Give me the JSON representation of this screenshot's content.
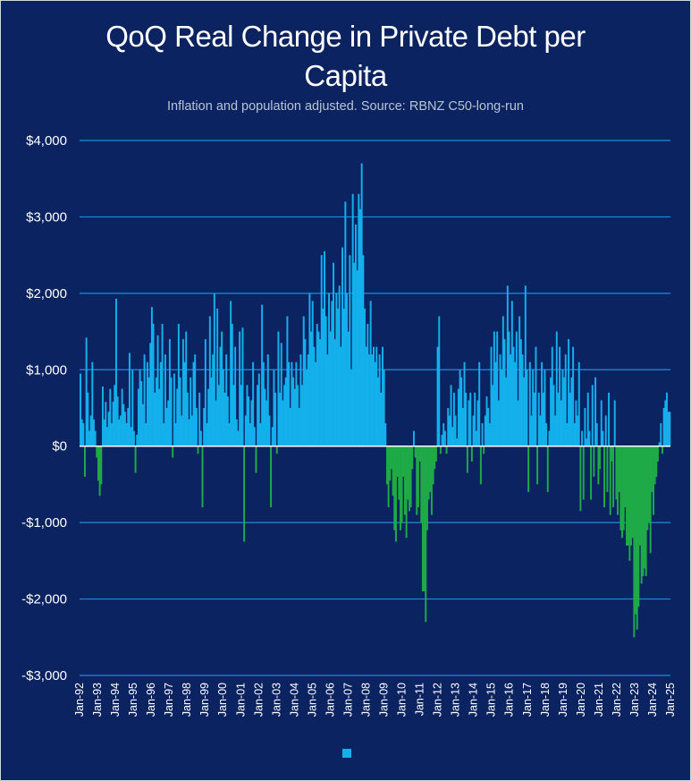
{
  "chart_data": {
    "type": "bar",
    "title_line1": "QoQ Real Change in Private Debt per",
    "title_line2": "Capita",
    "subtitle": "Inflation and population adjusted. Source: RBNZ C50-long-run",
    "xlabel": "",
    "ylabel": "",
    "ylim": [
      -3000,
      4000
    ],
    "y_ticks": [
      4000,
      3000,
      2000,
      1000,
      0,
      -1000,
      -2000,
      -3000
    ],
    "y_tick_labels": [
      "$4,000",
      "$3,000",
      "$2,000",
      "$1,000",
      "$0",
      "-$1,000",
      "-$2,000",
      "-$3,000"
    ],
    "x_tick_labels": [
      "Jan-92",
      "Jan-93",
      "Jan-94",
      "Jan-95",
      "Jan-96",
      "Jan-97",
      "Jan-98",
      "Jan-99",
      "Jan-00",
      "Jan-01",
      "Jan-02",
      "Jan-03",
      "Jan-04",
      "Jan-05",
      "Jan-06",
      "Jan-07",
      "Jan-08",
      "Jan-09",
      "Jan-10",
      "Jan-11",
      "Jan-12",
      "Jan-13",
      "Jan-14",
      "Jan-15",
      "Jan-16",
      "Jan-17",
      "Jan-18",
      "Jan-19",
      "Jan-20",
      "Jan-21",
      "Jan-22",
      "Jan-23",
      "Jan-24",
      "Jan-25"
    ],
    "series": [
      {
        "name": "",
        "frequency": "monthly, Jan-92 to Jan-25",
        "color_positive": "#13b0ec",
        "color_negative": "#1eaa46",
        "values": [
          950,
          350,
          300,
          -400,
          1420,
          700,
          200,
          400,
          1100,
          350,
          200,
          -150,
          -450,
          -650,
          -500,
          780,
          350,
          580,
          250,
          450,
          750,
          300,
          580,
          800,
          1930,
          650,
          350,
          400,
          750,
          550,
          450,
          300,
          500,
          1220,
          250,
          1000,
          200,
          -350,
          150,
          750,
          1000,
          850,
          550,
          1200,
          300,
          1100,
          900,
          1350,
          1820,
          1600,
          700,
          900,
          1450,
          750,
          1100,
          1600,
          300,
          1200,
          500,
          600,
          1400,
          900,
          -150,
          950,
          300,
          750,
          1600,
          900,
          400,
          1400,
          1100,
          1500,
          700,
          350,
          900,
          400,
          1100,
          1200,
          500,
          -100,
          700,
          200,
          -800,
          500,
          1400,
          300,
          750,
          1700,
          900,
          1200,
          2000,
          600,
          1800,
          800,
          1300,
          1500,
          1000,
          700,
          1200,
          650,
          300,
          1900,
          1600,
          800,
          1300,
          350,
          200,
          1500,
          800,
          1550,
          -1250,
          400,
          800,
          650,
          300,
          600,
          1100,
          250,
          -350,
          800,
          950,
          300,
          1850,
          1100,
          750,
          600,
          1200,
          400,
          -800,
          250,
          1000,
          700,
          -100,
          1500,
          700,
          1350,
          600,
          800,
          900,
          1700,
          1100,
          500,
          1100,
          900,
          750,
          1100,
          800,
          500,
          1200,
          800,
          1700,
          1400,
          1000,
          1200,
          2000,
          1500,
          1900,
          1300,
          1100,
          1600,
          1500,
          1400,
          2500,
          1800,
          2550,
          1700,
          1200,
          2000,
          1500,
          1900,
          2400,
          1400,
          2000,
          1800,
          2100,
          1300,
          2600,
          1800,
          3200,
          2000,
          1500,
          2500,
          1000,
          3300,
          2400,
          2900,
          2300,
          3300,
          3100,
          3700,
          2500,
          1800,
          1300,
          1600,
          1200,
          1900,
          1200,
          1300,
          1100,
          1300,
          900,
          1200,
          700,
          1300,
          1000,
          300,
          -500,
          -800,
          -450,
          -300,
          -650,
          -1100,
          -1250,
          -400,
          -700,
          -1100,
          -1000,
          -400,
          -900,
          -1200,
          -700,
          -850,
          -800,
          -300,
          200,
          -150,
          -900,
          -800,
          -200,
          -1000,
          -1900,
          -1900,
          -2300,
          -1100,
          -700,
          -600,
          -900,
          -500,
          -300,
          -200,
          1300,
          1700,
          -100,
          150,
          300,
          200,
          -100,
          500,
          400,
          800,
          250,
          700,
          400,
          100,
          750,
          1000,
          900,
          500,
          1100,
          700,
          -350,
          600,
          700,
          -200,
          400,
          700,
          200,
          600,
          1100,
          -500,
          300,
          -100,
          400,
          650,
          500,
          300,
          1300,
          800,
          1500,
          1100,
          1500,
          600,
          1200,
          1000,
          1700,
          1400,
          900,
          2100,
          1500,
          1200,
          1900,
          1300,
          1100,
          1500,
          600,
          1700,
          1400,
          1200,
          900,
          2100,
          1000,
          -600,
          1100,
          400,
          1000,
          700,
          1300,
          -500,
          700,
          400,
          1100,
          700,
          1000,
          300,
          -600,
          200,
          900,
          1300,
          800,
          400,
          1500,
          700,
          1300,
          600,
          1000,
          900,
          1200,
          300,
          1400,
          700,
          900,
          1300,
          300,
          600,
          400,
          1100,
          -850,
          200,
          -700,
          500,
          100,
          700,
          200,
          -700,
          800,
          -400,
          900,
          300,
          -500,
          -300,
          600,
          200,
          -800,
          400,
          -600,
          700,
          -900,
          -200,
          -800,
          600,
          -700,
          -900,
          -600,
          -1100,
          -1200,
          -1100,
          -800,
          -1300,
          -1300,
          -1500,
          -1300,
          -1200,
          -2500,
          -2200,
          -2400,
          -2100,
          -1300,
          -1800,
          -1700,
          -1600,
          -1700,
          -1100,
          -1000,
          -1400,
          -600,
          -900,
          -500,
          -400,
          -200,
          50,
          300,
          -100,
          500,
          600,
          700,
          450,
          450
        ]
      }
    ],
    "legend": {
      "entries": [
        ""
      ],
      "placement": "bottom-center",
      "swatch_color": "#13b0ec"
    }
  },
  "colors": {
    "background": "#0b2361",
    "gridline": "#1b8fd8",
    "zero_line": "#ffffff",
    "text": "#ffffff",
    "subtitle_text": "#b9c3d6"
  }
}
